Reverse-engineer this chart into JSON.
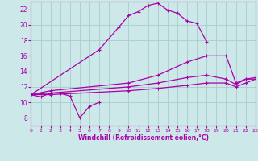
{
  "xlabel": "Windchill (Refroidissement éolien,°C)",
  "bg_color": "#cce8e8",
  "grid_color": "#aacccc",
  "line_color": "#aa00aa",
  "xlim": [
    0,
    23
  ],
  "ylim": [
    7,
    23
  ],
  "yticks": [
    8,
    10,
    12,
    14,
    16,
    18,
    20,
    22
  ],
  "xticks": [
    0,
    1,
    2,
    3,
    4,
    5,
    6,
    7,
    8,
    9,
    10,
    11,
    12,
    13,
    14,
    15,
    16,
    17,
    18,
    19,
    20,
    21,
    22,
    23
  ],
  "line1_x": [
    0,
    1,
    2,
    3,
    4,
    5,
    6,
    7
  ],
  "line1_y": [
    11.0,
    10.7,
    11.2,
    11.2,
    10.8,
    8.0,
    9.5,
    10.0
  ],
  "line2_x": [
    0,
    7,
    9,
    10,
    11,
    12,
    13,
    14,
    15,
    16,
    17,
    18
  ],
  "line2_y": [
    11.0,
    16.8,
    19.7,
    21.2,
    21.7,
    22.5,
    22.8,
    21.9,
    21.5,
    20.5,
    20.2,
    17.8
  ],
  "line3_x": [
    0,
    2,
    10,
    13,
    16,
    18,
    20,
    21,
    22,
    23
  ],
  "line3_y": [
    11.0,
    11.5,
    12.5,
    13.5,
    15.2,
    16.0,
    16.0,
    12.5,
    13.0,
    13.0
  ],
  "line4_x": [
    0,
    2,
    10,
    13,
    16,
    18,
    20,
    21,
    22,
    23
  ],
  "line4_y": [
    11.0,
    11.2,
    12.0,
    12.5,
    13.2,
    13.5,
    13.0,
    12.3,
    13.0,
    13.2
  ],
  "line5_x": [
    0,
    2,
    10,
    13,
    16,
    18,
    20,
    21,
    22,
    23
  ],
  "line5_y": [
    11.0,
    11.0,
    11.5,
    11.8,
    12.2,
    12.5,
    12.5,
    12.0,
    12.5,
    13.0
  ]
}
